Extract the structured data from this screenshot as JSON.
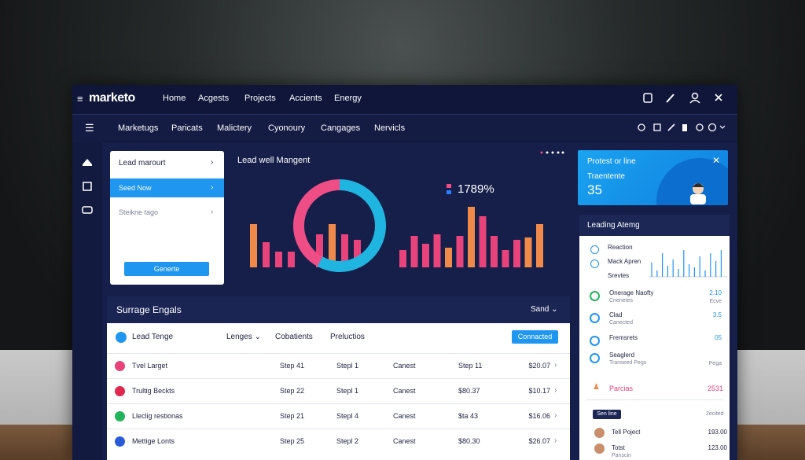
{
  "header": {
    "menu_icon": "≡",
    "logo": "marketo",
    "nav": [
      "Home",
      "Acgests",
      "Projects",
      "Accients",
      "Energy"
    ]
  },
  "subnav": [
    "Marketugs",
    "Paricats",
    "Malictery",
    "Cyonoury",
    "Cangages",
    "Nervicls"
  ],
  "lead_card": {
    "title": "Lead marourt",
    "items": [
      "Seed Now",
      "Steikne tago"
    ],
    "button": "Generte"
  },
  "lead_chart": {
    "title": "Lead well Mangent",
    "stat": "1789%",
    "donut": [
      {
        "value": 58,
        "color": "#1fb5e0"
      },
      {
        "value": 42,
        "color": "#ee4d86"
      }
    ],
    "groups": [
      {
        "values": [
          55,
          32,
          20,
          20
        ],
        "colors": [
          "#f08a4b",
          "#e8437b",
          "#e8437b",
          "#e8437b"
        ]
      },
      {
        "values": [
          42,
          55,
          42,
          35
        ],
        "colors": [
          "#e8437b",
          "#f08a4b",
          "#e8437b",
          "#e8437b"
        ]
      },
      {
        "values": [
          22,
          40,
          30,
          42,
          25,
          40,
          77,
          65,
          40,
          22,
          35,
          38,
          55
        ],
        "colors": [
          "#e8437b",
          "#e8437b",
          "#e8437b",
          "#e8437b",
          "#f08a4b",
          "#e8437b",
          "#f08a4b",
          "#e8437b",
          "#e8437b",
          "#e8437b",
          "#e8437b",
          "#f08a4b",
          "#f08a4b"
        ]
      }
    ]
  },
  "promo_card": {
    "title": "Protest or line",
    "label": "Traentente",
    "value": "35"
  },
  "leading_panel": {
    "title": "Leading Atemg",
    "legend": [
      "Reaction",
      "Mack Apren",
      "Srevtes"
    ],
    "spikes": [
      18,
      8,
      30,
      14,
      22,
      10,
      34,
      16,
      12,
      26,
      8,
      30,
      20,
      34
    ],
    "items": [
      {
        "title": "Onerage Naofty",
        "subtitle": "Cnenetes",
        "value": "2.10",
        "note": "Ecve"
      },
      {
        "title": "Clad",
        "subtitle": "Canected",
        "value": "3.5"
      },
      {
        "title": "Fremsrets",
        "value": "05"
      },
      {
        "title": "Seaglerd",
        "subtitle": "Transeed Pegs",
        "note": "Pega"
      }
    ],
    "alert": {
      "label": "Parcias",
      "value": "2531"
    },
    "footer": {
      "button": "Sen line",
      "dropdown": "2ecited",
      "rows": [
        {
          "name": "Tell Poject",
          "value": "193.00"
        },
        {
          "name": "Totst",
          "subtitle": "Panscin",
          "value": "123.00"
        }
      ]
    }
  },
  "table": {
    "title": "Surrage Engals",
    "dropdown": "Sand",
    "columns": [
      "Lead Tenge",
      "Lenges",
      "Cobatients",
      "Preluctios"
    ],
    "button": "Connacted",
    "rows": [
      [
        "Tvel Larget",
        "Step 41",
        "Stepl 1",
        "Canest",
        "Step 11",
        "$20.07"
      ],
      [
        "Trultig Beckts",
        "Step 22",
        "Stepl 1",
        "Canest",
        "$80.37",
        "$10.17"
      ],
      [
        "Lleclig restionas",
        "Step 21",
        "Stepl 4",
        "Canest",
        "$ta 43",
        "$16.06"
      ],
      [
        "Mettige Lonts",
        "Step 25",
        "Stepl 2",
        "Canest",
        "$80.30",
        "$26.07"
      ]
    ]
  }
}
